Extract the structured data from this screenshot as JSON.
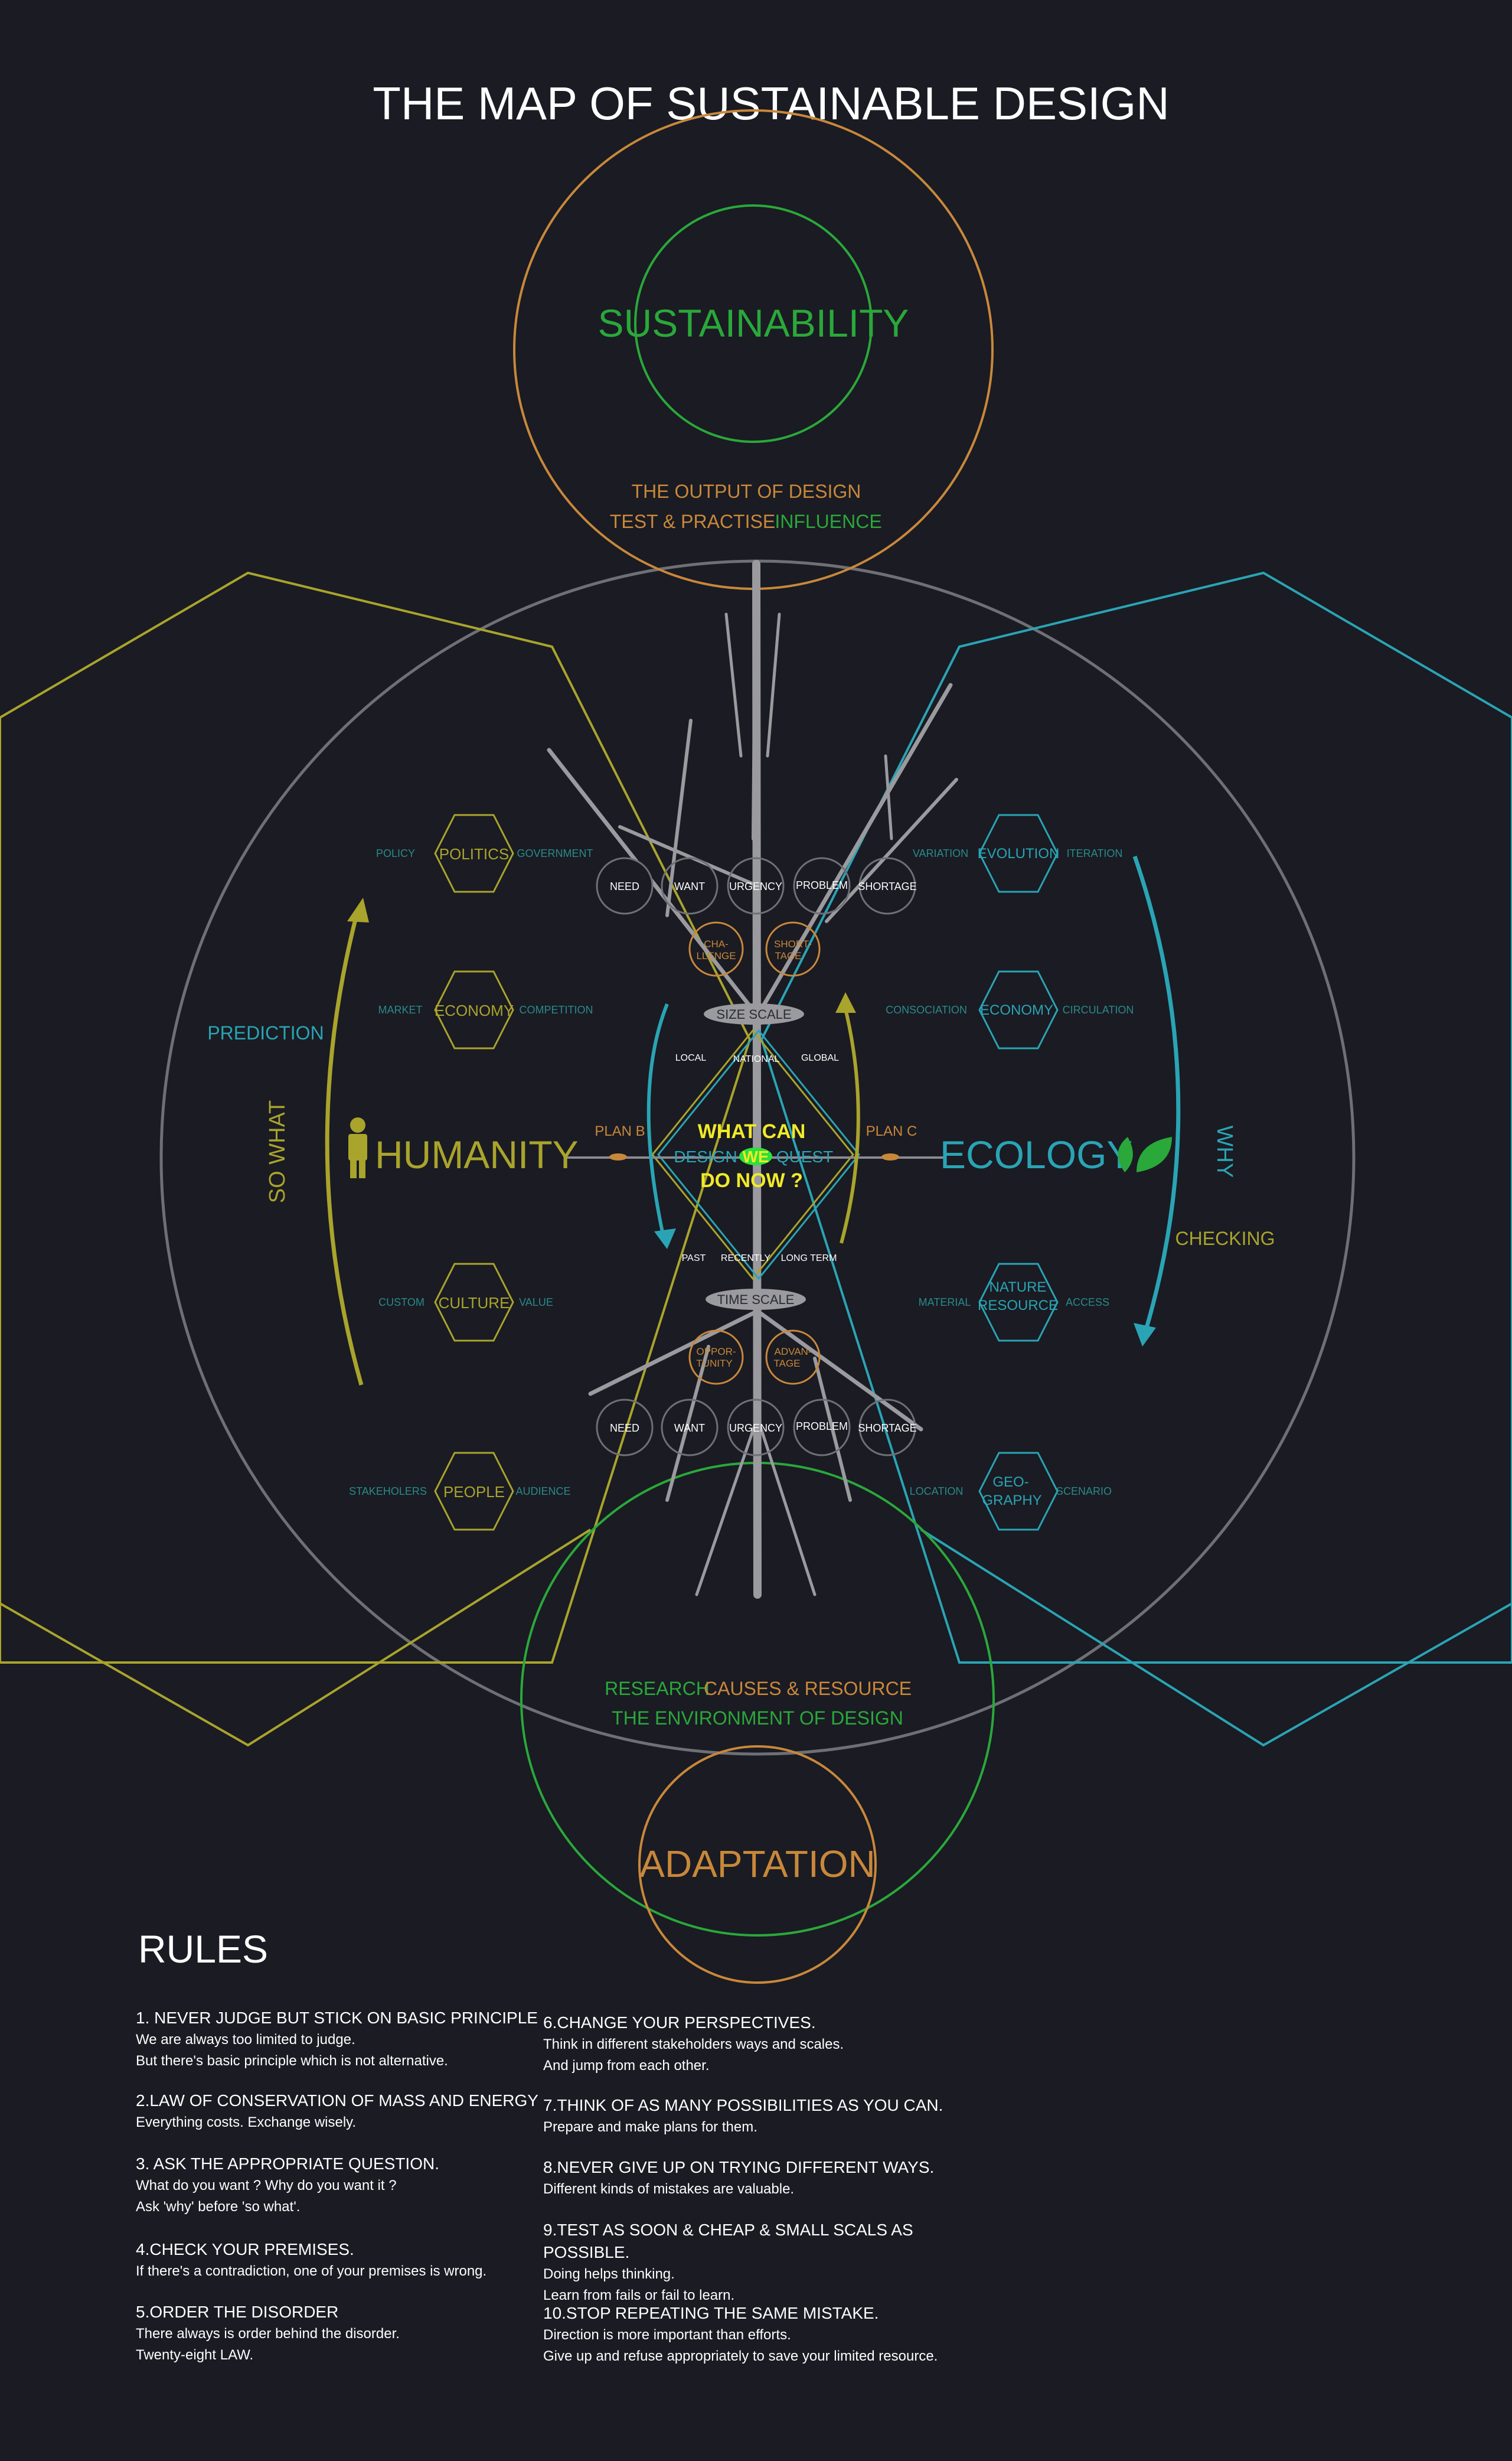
{
  "title": "THE MAP OF SUSTAINABLE DESIGN",
  "colors": {
    "background": "#1a1b23",
    "green": "#2aa83a",
    "orange": "#c8883a",
    "olive": "#a9a42c",
    "teal": "#2aa4b4",
    "gray": "#7a7a80",
    "yellow": "#f0ea28"
  },
  "top": {
    "circle_label": "SUSTAINABILITY",
    "output_label": "THE OUTPUT OF DESIGN",
    "test_label": "TEST & PRACTISE",
    "influence_label": "INFLUENCE"
  },
  "bottom": {
    "circle_label": "ADAPTATION",
    "research_label": "RESEARCH",
    "causes_label": "CAUSES & RESOURCE",
    "environment_label": "THE ENVIRONMENT OF DESIGN"
  },
  "left": {
    "title": "HUMANITY",
    "icon": "person-icon",
    "prediction": "PREDICTION",
    "so_what": "SO WHAT",
    "plan": "PLAN B",
    "hexes": [
      {
        "label": "POLITICS",
        "left": "POLICY",
        "right": "GOVERNMENT"
      },
      {
        "label": "ECONOMY",
        "left": "MARKET",
        "right": "COMPETITION"
      },
      {
        "label": "CULTURE",
        "left": "CUSTOM",
        "right": "VALUE"
      },
      {
        "label": "PEOPLE",
        "left": "STAKEHOLERS",
        "right": "AUDIENCE"
      }
    ]
  },
  "right": {
    "title": "ECOLOGY",
    "icon": "leaf-icon",
    "why": "WHY",
    "checking": "CHECKING",
    "plan": "PLAN C",
    "hexes": [
      {
        "label": "EVOLUTION",
        "left": "VARIATION",
        "right": "ITERATION"
      },
      {
        "label": "ECONOMY",
        "left": "CONSOCIATION",
        "right": "CIRCULATION"
      },
      {
        "label1": "NATURE",
        "label2": "RESOURCE",
        "left": "MATERIAL",
        "right": "ACCESS"
      },
      {
        "label1": "GEO-",
        "label2": "GRAPHY",
        "left": "LOCATION",
        "right": "SCENARIO"
      }
    ]
  },
  "center": {
    "line1": "WHAT CAN",
    "design": "DESIGN",
    "we": "WE",
    "quest": "QUEST",
    "line3": "DO NOW ?",
    "size_scale": "SIZE SCALE",
    "size_ticks": [
      "LOCAL",
      "NATIONAL",
      "GLOBAL"
    ],
    "time_scale": "TIME SCALE",
    "time_ticks": [
      "PAST",
      "RECENTLY",
      "LONG TERM"
    ]
  },
  "need_row": [
    "NEED",
    "WANT",
    "URGENCY",
    "PROBLEM",
    "SHORTAGE"
  ],
  "upper_small": [
    {
      "l1": "CHA-",
      "l2": "LLENGE"
    },
    {
      "l1": "SHORT-",
      "l2": "TAGE"
    }
  ],
  "lower_small": [
    {
      "l1": "OPPOR-",
      "l2": "TUNITY"
    },
    {
      "l1": "ADVAN-",
      "l2": "TAGE"
    }
  ],
  "rules": {
    "title": "RULES",
    "items": [
      {
        "head": "1. NEVER JUDGE BUT STICK ON BASIC PRINCIPLE",
        "lines": [
          "We are always too limited to judge.",
          "But there's basic principle which is not alternative."
        ]
      },
      {
        "head": "2.LAW OF CONSERVATION OF MASS AND ENERGY",
        "lines": [
          "Everything costs. Exchange wisely."
        ]
      },
      {
        "head": "3. ASK THE APPROPRIATE QUESTION.",
        "lines": [
          "What do you want ?  Why do you want it ?",
          "Ask 'why' before 'so what'."
        ]
      },
      {
        "head": "4.CHECK YOUR PREMISES.",
        "lines": [
          "If there's a contradiction, one of your premises is wrong."
        ]
      },
      {
        "head": "5.ORDER THE DISORDER",
        "lines": [
          "There always is order behind the disorder.",
          "Twenty-eight LAW."
        ]
      },
      {
        "head": "6.CHANGE YOUR PERSPECTIVES.",
        "lines": [
          "Think in different stakeholders ways and scales.",
          "And jump from each other."
        ]
      },
      {
        "head": "7.THINK OF AS MANY POSSIBILITIES AS YOU CAN.",
        "lines": [
          "Prepare and make plans for them."
        ]
      },
      {
        "head": "8.NEVER GIVE UP ON TRYING DIFFERENT WAYS.",
        "lines": [
          "Different kinds of mistakes are valuable."
        ]
      },
      {
        "head": "9.TEST AS SOON & CHEAP & SMALL SCALS AS POSSIBLE.",
        "lines": [
          "Doing helps thinking.",
          "Learn from fails or fail to learn."
        ]
      },
      {
        "head": "10.STOP REPEATING THE SAME MISTAKE.",
        "lines": [
          "Direction is more important than efforts.",
          "Give up and refuse appropriately to save your limited resource."
        ]
      }
    ]
  }
}
